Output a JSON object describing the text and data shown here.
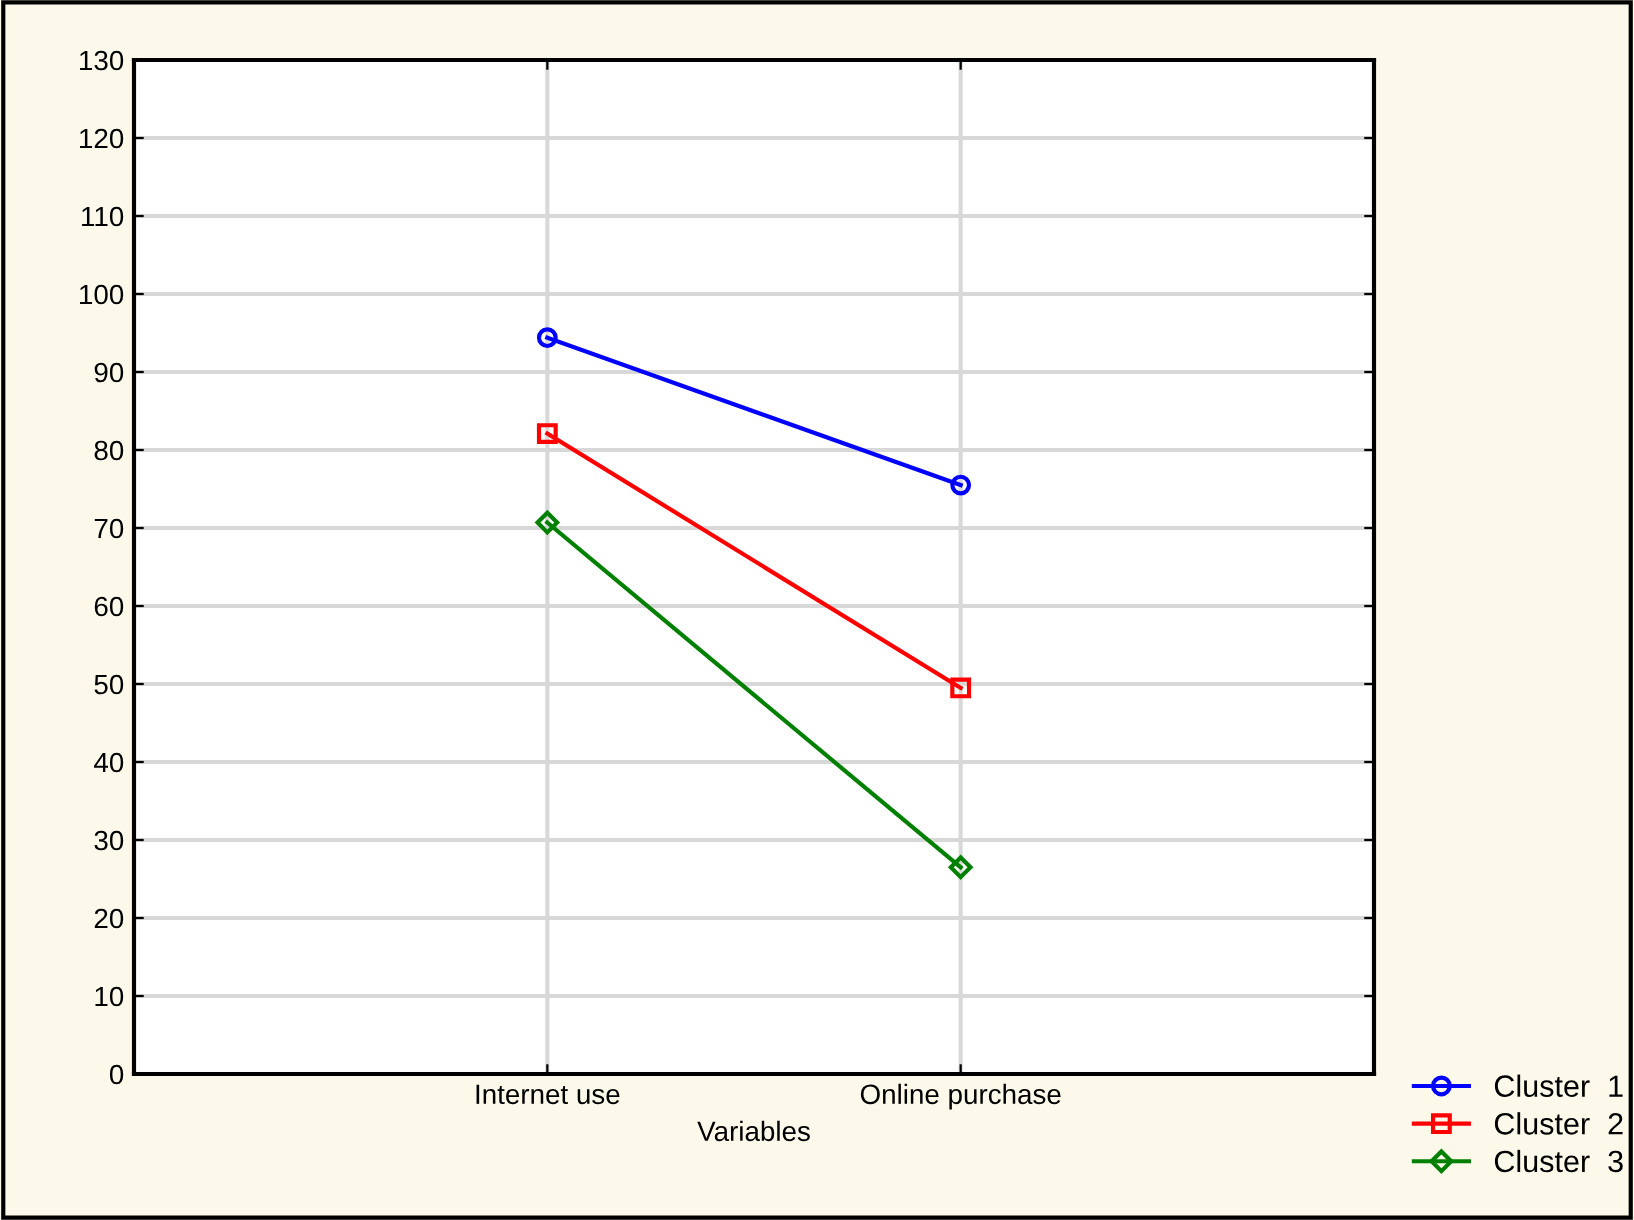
{
  "chart_data": {
    "type": "line",
    "xlabel": "Variables",
    "categories": [
      "Internet use",
      "Online purchase"
    ],
    "series": [
      {
        "name": "Cluster  1",
        "color": "#0000ff",
        "marker": "circle",
        "values": [
          94.4,
          75.5
        ]
      },
      {
        "name": "Cluster  2",
        "color": "#ff0000",
        "marker": "square",
        "values": [
          82.1,
          49.5
        ]
      },
      {
        "name": "Cluster  3",
        "color": "#008000",
        "marker": "diamond",
        "values": [
          70.7,
          26.5
        ]
      }
    ],
    "ylim": [
      0,
      130
    ],
    "yticks": [
      0,
      10,
      20,
      30,
      40,
      50,
      60,
      70,
      80,
      90,
      100,
      110,
      120,
      130
    ],
    "grid": true,
    "legend": "bottom right",
    "line_style": "solid"
  }
}
